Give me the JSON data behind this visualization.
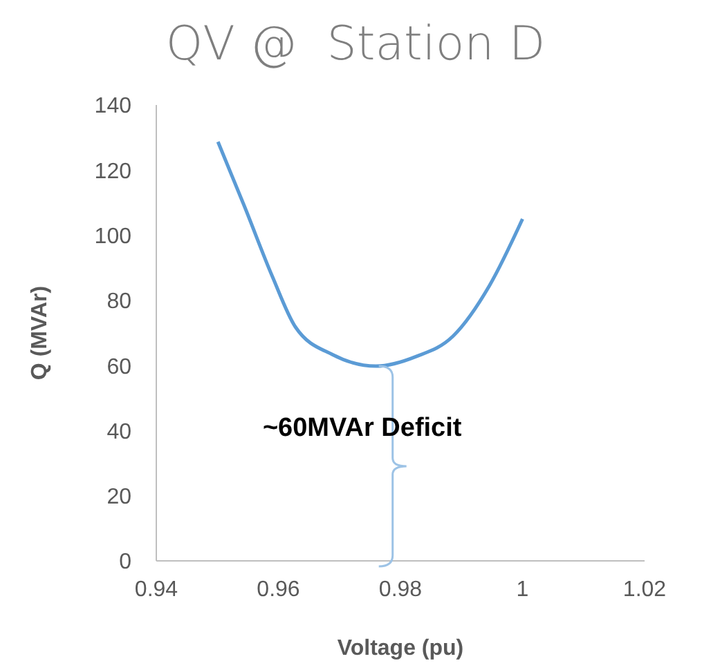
{
  "chart_data": {
    "type": "line",
    "title": "QV @  Station D",
    "xlabel": "Voltage (pu)",
    "ylabel": "Q (MVAr)",
    "x": [
      0.9501,
      0.9545,
      0.959,
      0.9628,
      0.9689,
      0.976,
      0.9825,
      0.9886,
      0.9946,
      1.0
    ],
    "series": [
      {
        "color": "#5b9bd5",
        "values": [
          128.7,
          108.6,
          87.4,
          71.8,
          63.3,
          59.8,
          62.7,
          69,
          84.6,
          105
        ]
      }
    ],
    "xlim": [
      0.94,
      1.02
    ],
    "xticks": [
      0.94,
      0.96,
      0.98,
      {
        "value": 1,
        "label": "1"
      },
      1.02
    ],
    "ylim": [
      0,
      140
    ],
    "yticks": [
      0,
      20,
      40,
      60,
      80,
      100,
      120,
      140
    ],
    "grid": false,
    "marker": "none",
    "line_style": "solid",
    "annotations": [
      "~60MVAr Deficit"
    ]
  }
}
